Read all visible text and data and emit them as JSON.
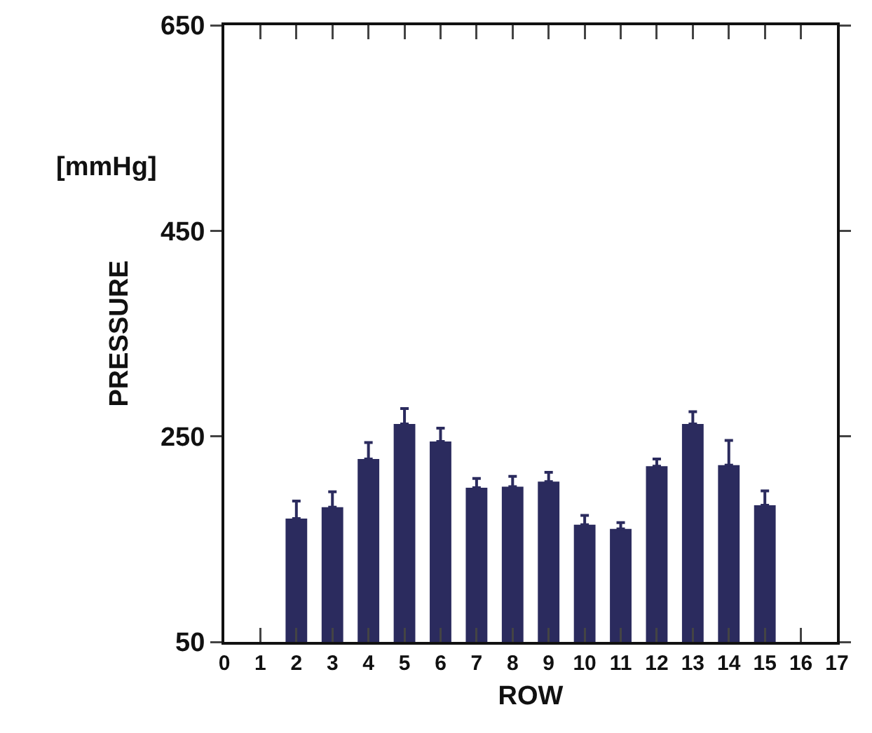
{
  "chart_data": {
    "type": "bar",
    "x": [
      2,
      3,
      4,
      5,
      6,
      7,
      8,
      9,
      10,
      11,
      12,
      13,
      14,
      15
    ],
    "values": [
      170,
      181,
      228,
      262,
      245,
      200,
      201,
      206,
      164,
      160,
      221,
      262,
      222,
      183
    ],
    "errors": [
      [
        170,
        187
      ],
      [
        181,
        196
      ],
      [
        228,
        244
      ],
      [
        262,
        277
      ],
      [
        245,
        258
      ],
      [
        200,
        209
      ],
      [
        201,
        211
      ],
      [
        206,
        215
      ],
      [
        164,
        173
      ],
      [
        160,
        166
      ],
      [
        221,
        228
      ],
      [
        262,
        274
      ],
      [
        222,
        246
      ],
      [
        183,
        197
      ]
    ],
    "color": "#2b2b5e",
    "xlim": [
      0,
      17
    ],
    "xticks": [
      0,
      1,
      2,
      3,
      4,
      5,
      6,
      7,
      8,
      9,
      10,
      11,
      12,
      13,
      14,
      15,
      16,
      17
    ],
    "ylim": [
      50,
      650
    ],
    "yticks": [
      50,
      250,
      450,
      650
    ],
    "xlabel": "ROW",
    "ylabel": "PRESSURE",
    "annotations": [
      "[mmHg]"
    ],
    "grid": false,
    "legend": false
  }
}
